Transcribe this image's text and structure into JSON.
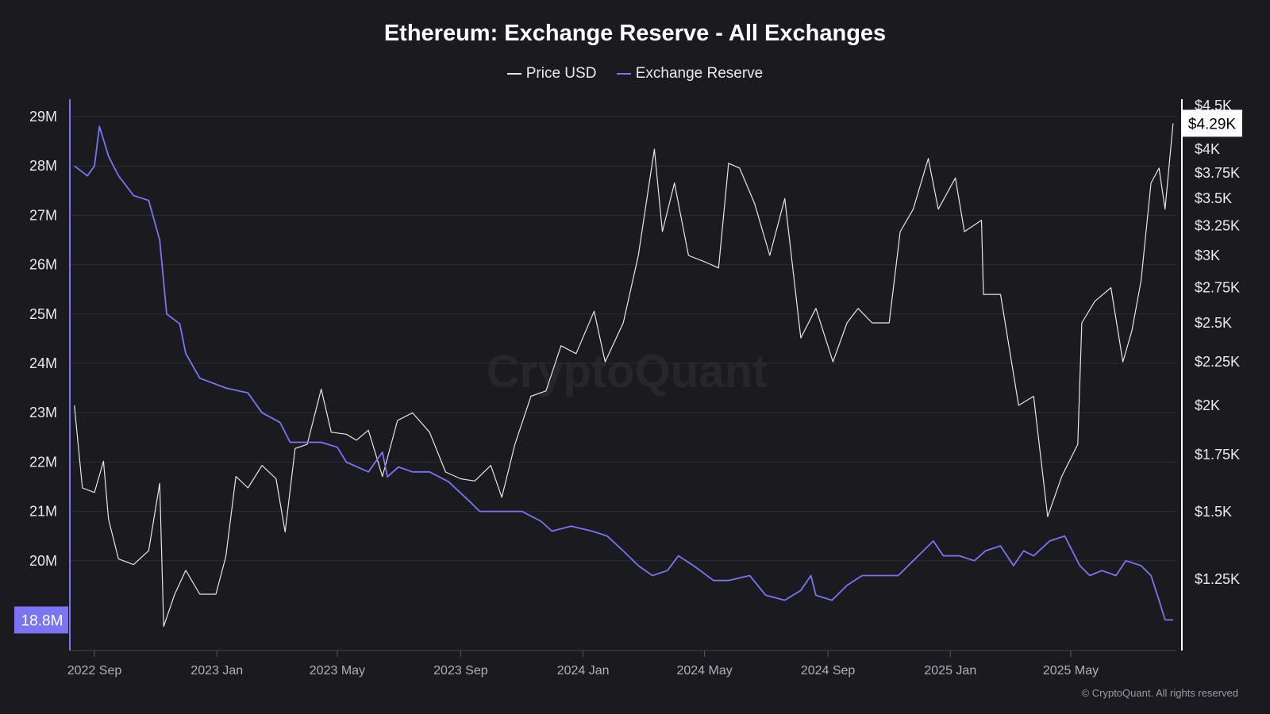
{
  "chart_data": {
    "type": "line",
    "title": "Ethereum: Exchange Reserve - All Exchanges",
    "legend": [
      "Price USD",
      "Exchange Reserve"
    ],
    "legend_placement": "top-center",
    "watermark": "CryptoQuant",
    "credit": "© CryptoQuant. All rights reserved",
    "x_ticks": [
      {
        "label": "2022 Sep",
        "date": "2022-09-01"
      },
      {
        "label": "2023 Jan",
        "date": "2023-01-01"
      },
      {
        "label": "2023 May",
        "date": "2023-05-01"
      },
      {
        "label": "2023 Sep",
        "date": "2023-09-01"
      },
      {
        "label": "2024 Jan",
        "date": "2024-01-01"
      },
      {
        "label": "2024 May",
        "date": "2024-05-01"
      },
      {
        "label": "2024 Sep",
        "date": "2024-09-01"
      },
      {
        "label": "2025 Jan",
        "date": "2025-01-01"
      },
      {
        "label": "2025 May",
        "date": "2025-05-01"
      }
    ],
    "left_axis": {
      "label": "Exchange Reserve",
      "ylim": [
        18.4,
        29.3
      ],
      "ticks": [
        {
          "v": 20,
          "label": "20M"
        },
        {
          "v": 21,
          "label": "21M"
        },
        {
          "v": 22,
          "label": "22M"
        },
        {
          "v": 23,
          "label": "23M"
        },
        {
          "v": 24,
          "label": "24M"
        },
        {
          "v": 25,
          "label": "25M"
        },
        {
          "v": 26,
          "label": "26M"
        },
        {
          "v": 27,
          "label": "27M"
        },
        {
          "v": 28,
          "label": "28M"
        },
        {
          "v": 29,
          "label": "29M"
        }
      ],
      "current_label": "18.8M",
      "current_value": 18.8
    },
    "right_axis": {
      "label": "Price USD",
      "scale": "log",
      "ticks": [
        {
          "v": 1250,
          "label": "$1.25K"
        },
        {
          "v": 1500,
          "label": "$1.5K"
        },
        {
          "v": 1750,
          "label": "$1.75K"
        },
        {
          "v": 2000,
          "label": "$2K"
        },
        {
          "v": 2250,
          "label": "$2.25K"
        },
        {
          "v": 2500,
          "label": "$2.5K"
        },
        {
          "v": 2750,
          "label": "$2.75K"
        },
        {
          "v": 3000,
          "label": "$3K"
        },
        {
          "v": 3250,
          "label": "$3.25K"
        },
        {
          "v": 3500,
          "label": "$3.5K"
        },
        {
          "v": 3750,
          "label": "$3.75K"
        },
        {
          "v": 4000,
          "label": "$4K"
        },
        {
          "v": 4500,
          "label": "$4.5K"
        }
      ],
      "current_label": "$4.29K",
      "current_value": 4290
    },
    "series": [
      {
        "name": "Price USD",
        "color": "#e6e6e6",
        "axis": "right",
        "points": [
          [
            "2022-08-12",
            2000
          ],
          [
            "2022-08-20",
            1600
          ],
          [
            "2022-09-01",
            1580
          ],
          [
            "2022-09-10",
            1720
          ],
          [
            "2022-09-15",
            1470
          ],
          [
            "2022-09-25",
            1320
          ],
          [
            "2022-10-10",
            1300
          ],
          [
            "2022-10-25",
            1350
          ],
          [
            "2022-11-05",
            1620
          ],
          [
            "2022-11-09",
            1100
          ],
          [
            "2022-11-20",
            1200
          ],
          [
            "2022-12-01",
            1280
          ],
          [
            "2022-12-15",
            1200
          ],
          [
            "2022-12-31",
            1200
          ],
          [
            "2023-01-10",
            1330
          ],
          [
            "2023-01-20",
            1650
          ],
          [
            "2023-02-01",
            1600
          ],
          [
            "2023-02-15",
            1700
          ],
          [
            "2023-03-01",
            1640
          ],
          [
            "2023-03-10",
            1420
          ],
          [
            "2023-03-20",
            1780
          ],
          [
            "2023-04-01",
            1800
          ],
          [
            "2023-04-15",
            2090
          ],
          [
            "2023-04-25",
            1860
          ],
          [
            "2023-05-10",
            1850
          ],
          [
            "2023-05-20",
            1820
          ],
          [
            "2023-06-01",
            1870
          ],
          [
            "2023-06-15",
            1650
          ],
          [
            "2023-06-30",
            1920
          ],
          [
            "2023-07-15",
            1960
          ],
          [
            "2023-08-01",
            1860
          ],
          [
            "2023-08-17",
            1670
          ],
          [
            "2023-09-01",
            1640
          ],
          [
            "2023-09-15",
            1630
          ],
          [
            "2023-10-01",
            1700
          ],
          [
            "2023-10-12",
            1560
          ],
          [
            "2023-10-25",
            1800
          ],
          [
            "2023-11-10",
            2050
          ],
          [
            "2023-11-25",
            2080
          ],
          [
            "2023-12-10",
            2350
          ],
          [
            "2023-12-25",
            2300
          ],
          [
            "2024-01-12",
            2580
          ],
          [
            "2024-01-23",
            2250
          ],
          [
            "2024-02-10",
            2500
          ],
          [
            "2024-02-25",
            3000
          ],
          [
            "2024-03-12",
            4000
          ],
          [
            "2024-03-20",
            3200
          ],
          [
            "2024-04-01",
            3650
          ],
          [
            "2024-04-15",
            3000
          ],
          [
            "2024-05-01",
            2950
          ],
          [
            "2024-05-15",
            2900
          ],
          [
            "2024-05-25",
            3850
          ],
          [
            "2024-06-05",
            3800
          ],
          [
            "2024-06-20",
            3450
          ],
          [
            "2024-07-05",
            3000
          ],
          [
            "2024-07-20",
            3500
          ],
          [
            "2024-08-05",
            2400
          ],
          [
            "2024-08-20",
            2600
          ],
          [
            "2024-09-06",
            2250
          ],
          [
            "2024-09-20",
            2500
          ],
          [
            "2024-10-01",
            2600
          ],
          [
            "2024-10-15",
            2500
          ],
          [
            "2024-11-01",
            2500
          ],
          [
            "2024-11-12",
            3200
          ],
          [
            "2024-11-25",
            3400
          ],
          [
            "2024-12-10",
            3900
          ],
          [
            "2024-12-20",
            3400
          ],
          [
            "2025-01-06",
            3700
          ],
          [
            "2025-01-15",
            3200
          ],
          [
            "2025-02-01",
            3300
          ],
          [
            "2025-02-03",
            2700
          ],
          [
            "2025-02-20",
            2700
          ],
          [
            "2025-03-10",
            2000
          ],
          [
            "2025-03-25",
            2050
          ],
          [
            "2025-04-08",
            1480
          ],
          [
            "2025-04-22",
            1650
          ],
          [
            "2025-05-08",
            1800
          ],
          [
            "2025-05-12",
            2500
          ],
          [
            "2025-05-25",
            2650
          ],
          [
            "2025-06-10",
            2750
          ],
          [
            "2025-06-22",
            2250
          ],
          [
            "2025-07-01",
            2450
          ],
          [
            "2025-07-10",
            2800
          ],
          [
            "2025-07-20",
            3650
          ],
          [
            "2025-07-28",
            3800
          ],
          [
            "2025-08-03",
            3400
          ],
          [
            "2025-08-11",
            4290
          ]
        ]
      },
      {
        "name": "Exchange Reserve",
        "color": "#7b74f5",
        "axis": "left",
        "points": [
          [
            "2022-08-12",
            28.0
          ],
          [
            "2022-08-25",
            27.8
          ],
          [
            "2022-09-01",
            28.0
          ],
          [
            "2022-09-06",
            28.8
          ],
          [
            "2022-09-15",
            28.2
          ],
          [
            "2022-09-25",
            27.8
          ],
          [
            "2022-10-10",
            27.4
          ],
          [
            "2022-10-25",
            27.3
          ],
          [
            "2022-11-05",
            26.5
          ],
          [
            "2022-11-12",
            25.0
          ],
          [
            "2022-11-25",
            24.8
          ],
          [
            "2022-12-01",
            24.2
          ],
          [
            "2022-12-15",
            23.7
          ],
          [
            "2023-01-10",
            23.5
          ],
          [
            "2023-02-01",
            23.4
          ],
          [
            "2023-02-15",
            23.0
          ],
          [
            "2023-03-05",
            22.8
          ],
          [
            "2023-03-15",
            22.4
          ],
          [
            "2023-04-01",
            22.4
          ],
          [
            "2023-04-15",
            22.4
          ],
          [
            "2023-05-01",
            22.3
          ],
          [
            "2023-05-10",
            22.0
          ],
          [
            "2023-06-01",
            21.8
          ],
          [
            "2023-06-15",
            22.2
          ],
          [
            "2023-06-20",
            21.7
          ],
          [
            "2023-07-01",
            21.9
          ],
          [
            "2023-07-15",
            21.8
          ],
          [
            "2023-08-01",
            21.8
          ],
          [
            "2023-08-20",
            21.6
          ],
          [
            "2023-09-10",
            21.2
          ],
          [
            "2023-09-20",
            21.0
          ],
          [
            "2023-10-15",
            21.0
          ],
          [
            "2023-11-01",
            21.0
          ],
          [
            "2023-11-20",
            20.8
          ],
          [
            "2023-12-01",
            20.6
          ],
          [
            "2023-12-20",
            20.7
          ],
          [
            "2024-01-10",
            20.6
          ],
          [
            "2024-01-25",
            20.5
          ],
          [
            "2024-02-10",
            20.2
          ],
          [
            "2024-02-25",
            19.9
          ],
          [
            "2024-03-10",
            19.7
          ],
          [
            "2024-03-25",
            19.8
          ],
          [
            "2024-04-05",
            20.1
          ],
          [
            "2024-04-20",
            19.9
          ],
          [
            "2024-05-10",
            19.6
          ],
          [
            "2024-05-25",
            19.6
          ],
          [
            "2024-06-15",
            19.7
          ],
          [
            "2024-07-01",
            19.3
          ],
          [
            "2024-07-20",
            19.2
          ],
          [
            "2024-08-05",
            19.4
          ],
          [
            "2024-08-15",
            19.7
          ],
          [
            "2024-08-20",
            19.3
          ],
          [
            "2024-09-05",
            19.2
          ],
          [
            "2024-09-20",
            19.5
          ],
          [
            "2024-10-05",
            19.7
          ],
          [
            "2024-10-25",
            19.7
          ],
          [
            "2024-11-10",
            19.7
          ],
          [
            "2024-11-25",
            20.0
          ],
          [
            "2024-12-05",
            20.2
          ],
          [
            "2024-12-15",
            20.4
          ],
          [
            "2024-12-25",
            20.1
          ],
          [
            "2025-01-10",
            20.1
          ],
          [
            "2025-01-25",
            20.0
          ],
          [
            "2025-02-05",
            20.2
          ],
          [
            "2025-02-20",
            20.3
          ],
          [
            "2025-03-05",
            19.9
          ],
          [
            "2025-03-15",
            20.2
          ],
          [
            "2025-03-25",
            20.1
          ],
          [
            "2025-04-10",
            20.4
          ],
          [
            "2025-04-25",
            20.5
          ],
          [
            "2025-05-10",
            19.9
          ],
          [
            "2025-05-20",
            19.7
          ],
          [
            "2025-06-01",
            19.8
          ],
          [
            "2025-06-15",
            19.7
          ],
          [
            "2025-06-25",
            20.0
          ],
          [
            "2025-07-10",
            19.9
          ],
          [
            "2025-07-20",
            19.7
          ],
          [
            "2025-07-28",
            19.2
          ],
          [
            "2025-08-03",
            18.8
          ],
          [
            "2025-08-11",
            18.8
          ]
        ]
      }
    ]
  }
}
